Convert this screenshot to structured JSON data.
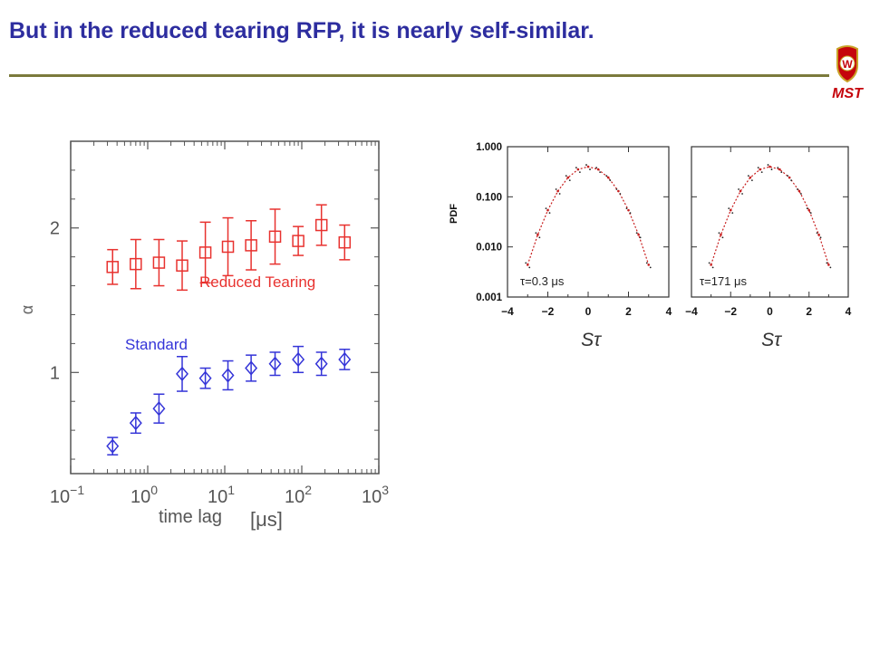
{
  "slide": {
    "title": "But in the reduced tearing RFP, it is nearly self-similar.",
    "logo_text": "MST",
    "logo_letter": "W",
    "colors": {
      "title": "#2d2d9f",
      "rule": "#7b7a3c",
      "logo_red": "#c5050c",
      "logo_gold": "#c9a227"
    }
  },
  "chart_data": [
    {
      "type": "scatter",
      "ylabel": "α",
      "xlabel_text": "time lag",
      "xlabel_unit": "[μs]",
      "x_scale": "log",
      "xlim": [
        0.1,
        1000
      ],
      "ylim": [
        0.3,
        2.6
      ],
      "x_ticks": [
        {
          "base": "10",
          "exp": "−1"
        },
        {
          "base": "10",
          "exp": "0"
        },
        {
          "base": "10",
          "exp": "1"
        },
        {
          "base": "10",
          "exp": "2"
        },
        {
          "base": "10",
          "exp": "3"
        }
      ],
      "y_ticks": [
        "1",
        "2"
      ],
      "series": [
        {
          "name": "Reduced Tearing",
          "marker": "square",
          "color": "#e8322f",
          "x": [
            0.35,
            0.7,
            1.4,
            2.8,
            5.6,
            11,
            22,
            45,
            90,
            180,
            360
          ],
          "y": [
            1.73,
            1.75,
            1.76,
            1.74,
            1.83,
            1.87,
            1.88,
            1.94,
            1.91,
            2.02,
            1.9
          ],
          "err": [
            0.12,
            0.17,
            0.16,
            0.17,
            0.21,
            0.2,
            0.17,
            0.19,
            0.1,
            0.14,
            0.12
          ]
        },
        {
          "name": "Standard",
          "marker": "diamond",
          "color": "#3434d8",
          "x": [
            0.35,
            0.7,
            1.4,
            2.8,
            5.6,
            11,
            22,
            45,
            90,
            180,
            360
          ],
          "y": [
            0.49,
            0.65,
            0.75,
            0.99,
            0.96,
            0.98,
            1.03,
            1.06,
            1.09,
            1.06,
            1.09
          ],
          "err": [
            0.06,
            0.07,
            0.1,
            0.12,
            0.07,
            0.1,
            0.09,
            0.08,
            0.09,
            0.08,
            0.07
          ]
        }
      ]
    },
    {
      "type": "scatter",
      "y_scale": "log",
      "ylabel": "PDF",
      "xlabel": "Sτ",
      "annotation": "τ=0.3 μs",
      "xlim": [
        -4,
        4
      ],
      "ylim": [
        0.001,
        1.0
      ],
      "x_ticks": [
        "−4",
        "−2",
        "0",
        "2",
        "4"
      ],
      "y_ticks": [
        "1.000",
        "0.100",
        "0.010",
        "0.001"
      ],
      "series": [
        {
          "name": "",
          "color": "#c81e1e",
          "style": "dashed",
          "x": [
            -3.0,
            -2.5,
            -2.0,
            -1.5,
            -1.0,
            -0.5,
            0.0,
            0.5,
            1.0,
            1.5,
            2.0,
            2.5,
            3.0
          ],
          "y": [
            0.0044,
            0.0175,
            0.054,
            0.13,
            0.242,
            0.352,
            0.399,
            0.352,
            0.242,
            0.13,
            0.054,
            0.0175,
            0.0044
          ]
        }
      ]
    },
    {
      "type": "scatter",
      "y_scale": "log",
      "xlabel": "Sτ",
      "annotation": "τ=171 μs",
      "xlim": [
        -4,
        4
      ],
      "ylim": [
        0.001,
        1.0
      ],
      "x_ticks": [
        "−4",
        "−2",
        "0",
        "2",
        "4"
      ],
      "series": [
        {
          "name": "",
          "color": "#c81e1e",
          "style": "dashed",
          "x": [
            -3.0,
            -2.5,
            -2.0,
            -1.5,
            -1.0,
            -0.5,
            0.0,
            0.5,
            1.0,
            1.5,
            2.0,
            2.5,
            3.0
          ],
          "y": [
            0.0044,
            0.0175,
            0.054,
            0.13,
            0.242,
            0.352,
            0.399,
            0.352,
            0.242,
            0.13,
            0.054,
            0.0175,
            0.0044
          ]
        }
      ]
    }
  ]
}
